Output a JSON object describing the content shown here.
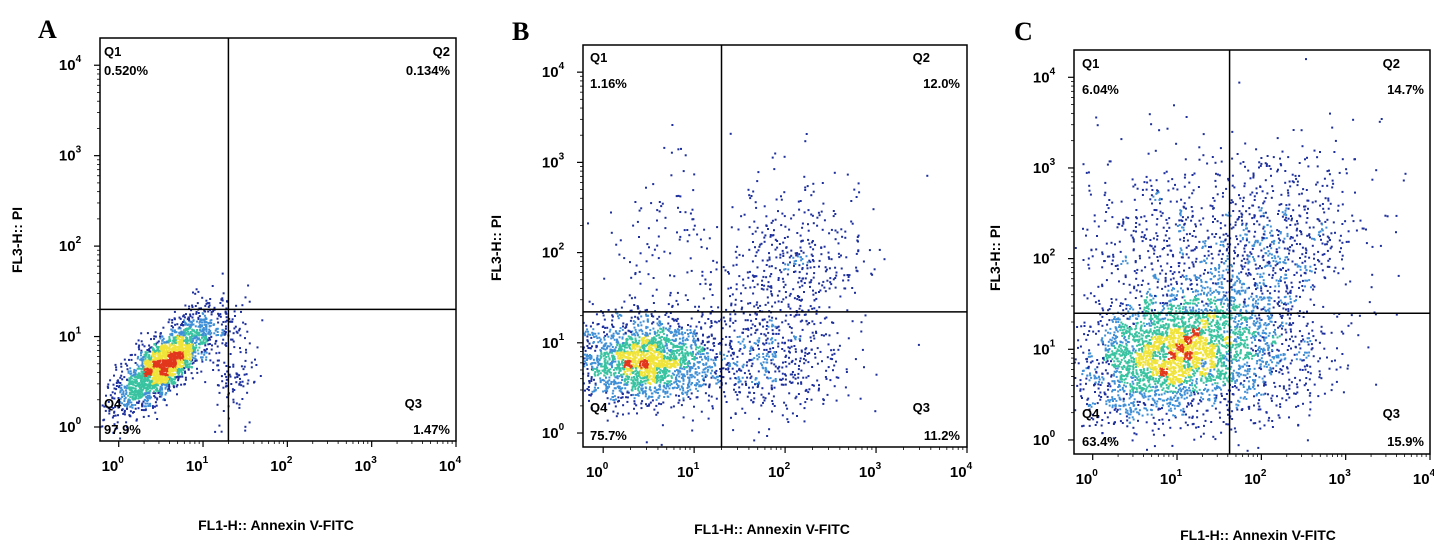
{
  "chart_data": [
    {
      "type": "scatter",
      "panel_label": "A",
      "xlabel": "FL1-H:: Annexin V-FITC",
      "ylabel": "FL3-H:: PI",
      "xscale": "log",
      "yscale": "log",
      "xlim": [
        0.6,
        10000
      ],
      "ylim": [
        0.7,
        20000
      ],
      "x_ticks": [
        {
          "base": "10",
          "exp": "0"
        },
        {
          "base": "10",
          "exp": "1"
        },
        {
          "base": "10",
          "exp": "2"
        },
        {
          "base": "10",
          "exp": "3"
        },
        {
          "base": "10",
          "exp": "4"
        }
      ],
      "y_ticks": [
        {
          "base": "10",
          "exp": "0"
        },
        {
          "base": "10",
          "exp": "1"
        },
        {
          "base": "10",
          "exp": "2"
        },
        {
          "base": "10",
          "exp": "3"
        },
        {
          "base": "10",
          "exp": "4"
        }
      ],
      "gate": {
        "x": 20,
        "y": 20
      },
      "quadrants": [
        {
          "name": "Q1",
          "value": "0.520%"
        },
        {
          "name": "Q2",
          "value": "0.134%"
        },
        {
          "name": "Q3",
          "value": "1.47%"
        },
        {
          "name": "Q4",
          "value": "97.9%"
        }
      ],
      "point_count": 2400
    },
    {
      "type": "scatter",
      "panel_label": "B",
      "xlabel": "FL1-H:: Annexin V-FITC",
      "ylabel": "FL3-H:: PI",
      "xscale": "log",
      "yscale": "log",
      "xlim": [
        0.6,
        10000
      ],
      "ylim": [
        0.7,
        20000
      ],
      "x_ticks": [
        {
          "base": "10",
          "exp": "0"
        },
        {
          "base": "10",
          "exp": "1"
        },
        {
          "base": "10",
          "exp": "2"
        },
        {
          "base": "10",
          "exp": "3"
        },
        {
          "base": "10",
          "exp": "4"
        }
      ],
      "y_ticks": [
        {
          "base": "10",
          "exp": "0"
        },
        {
          "base": "10",
          "exp": "1"
        },
        {
          "base": "10",
          "exp": "2"
        },
        {
          "base": "10",
          "exp": "3"
        },
        {
          "base": "10",
          "exp": "4"
        }
      ],
      "gate": {
        "x": 20,
        "y": 22
      },
      "quadrants": [
        {
          "name": "Q1",
          "value": "1.16%"
        },
        {
          "name": "Q2",
          "value": "12.0%"
        },
        {
          "name": "Q3",
          "value": "11.2%"
        },
        {
          "name": "Q4",
          "value": "75.7%"
        }
      ],
      "point_count": 3200
    },
    {
      "type": "scatter",
      "panel_label": "C",
      "xlabel": "FL1-H:: Annexin V-FITC",
      "ylabel": "FL3-H:: PI",
      "xscale": "log",
      "yscale": "log",
      "xlim": [
        0.6,
        10000
      ],
      "ylim": [
        0.7,
        20000
      ],
      "x_ticks": [
        {
          "base": "10",
          "exp": "0"
        },
        {
          "base": "10",
          "exp": "1"
        },
        {
          "base": "10",
          "exp": "2"
        },
        {
          "base": "10",
          "exp": "3"
        },
        {
          "base": "10",
          "exp": "4"
        }
      ],
      "y_ticks": [
        {
          "base": "10",
          "exp": "0"
        },
        {
          "base": "10",
          "exp": "1"
        },
        {
          "base": "10",
          "exp": "2"
        },
        {
          "base": "10",
          "exp": "3"
        },
        {
          "base": "10",
          "exp": "4"
        }
      ],
      "gate": {
        "x": 42,
        "y": 25
      },
      "quadrants": [
        {
          "name": "Q1",
          "value": "6.04%"
        },
        {
          "name": "Q2",
          "value": "14.7%"
        },
        {
          "name": "Q3",
          "value": "15.9%"
        },
        {
          "name": "Q4",
          "value": "63.4%"
        }
      ],
      "point_count": 4800
    }
  ],
  "colors": {
    "dot_sparse": "#1c2f9c",
    "dot_mid": "#3f8fd6",
    "dot_dense": "#39c3a0",
    "dot_hot": "#f0e33a",
    "dot_peak": "#e2371c",
    "gate_line": "#000000",
    "frame": "#000000"
  }
}
